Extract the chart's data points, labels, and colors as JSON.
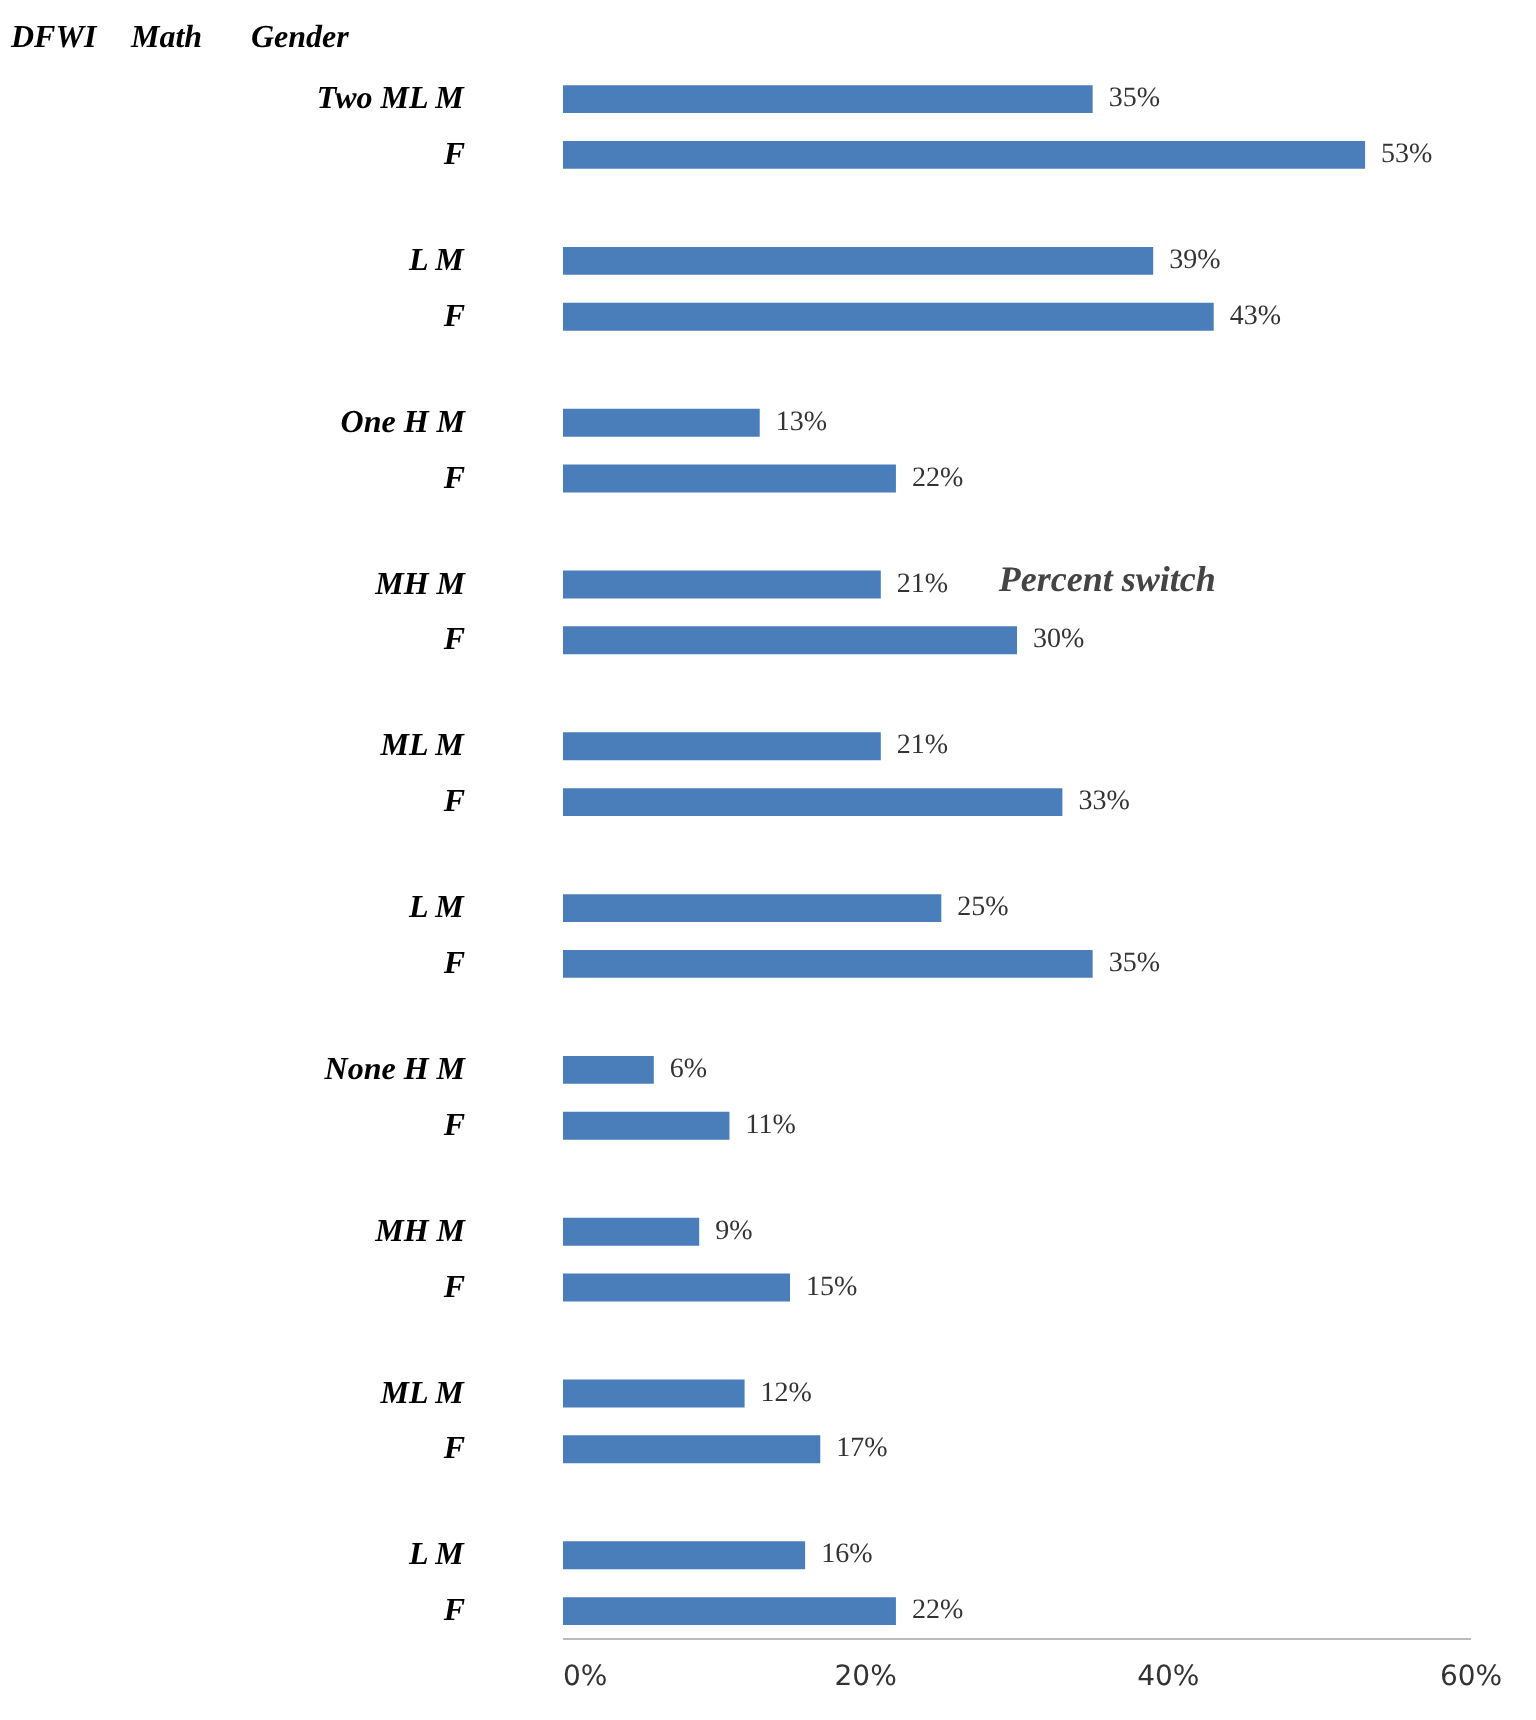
{
  "chart_data": {
    "type": "bar",
    "orientation": "horizontal",
    "xlabel": "Percent switch",
    "annotations": [
      "DFWI",
      "Math",
      "Gender"
    ],
    "categories": [
      "Two ML M",
      "F",
      "L M",
      "F",
      "One H M",
      "F",
      "MH M",
      "F",
      "ML M",
      "F",
      "L M",
      "F",
      "None H M",
      "F",
      "MH M",
      "F",
      "ML M",
      "F",
      "L M",
      "F"
    ],
    "values": [
      35,
      53,
      39,
      43,
      13,
      22,
      21,
      30,
      21,
      33,
      25,
      35,
      6,
      11,
      9,
      15,
      12,
      17,
      16,
      22
    ],
    "value_labels": [
      "35%",
      "53%",
      "39%",
      "43%",
      "13%",
      "22%",
      "21%",
      "30%",
      "21%",
      "33%",
      "25%",
      "35%",
      "6%",
      "11%",
      "9%",
      "15%",
      "12%",
      "17%",
      "16%",
      "22%"
    ],
    "color": "#4a7ebb",
    "xlim": [
      0,
      60
    ],
    "xticks": [
      {
        "value": 0,
        "label": "0%"
      },
      {
        "value": 20,
        "label": "20%"
      },
      {
        "value": 40,
        "label": "40%"
      },
      {
        "value": 60,
        "label": "60%"
      }
    ],
    "grid": false
  }
}
